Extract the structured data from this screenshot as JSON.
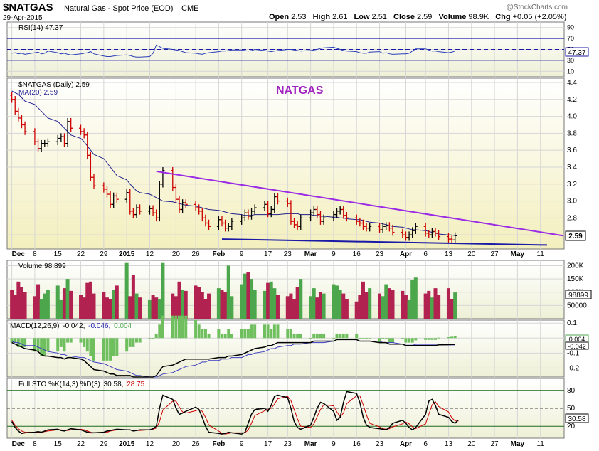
{
  "header": {
    "symbol": "$NATGAS",
    "description": "Natural Gas - Spot Price (EOD)",
    "exchange": "CME",
    "date": "29-Apr-2015",
    "open_label": "Open",
    "open": "2.53",
    "high_label": "High",
    "high": "2.61",
    "low_label": "Low",
    "low": "2.51",
    "close_label": "Close",
    "close": "2.59",
    "volume_label": "Volume",
    "volume": "98.9K",
    "chg_label": "Chg",
    "chg": "+0.05 (+2.05%)",
    "watermark": "@StockCharts.com"
  },
  "panels": {
    "rsi": {
      "label": "RSI(14) 47.37",
      "value": 47.37,
      "value_label": "47.37",
      "ticks": [
        "90",
        "70",
        "50",
        "30",
        "10"
      ],
      "ticks_num": [
        90,
        70,
        50,
        30,
        10
      ],
      "overbought": 70,
      "oversold": 30
    },
    "price": {
      "label": "$NATGAS (Daily) 2.59",
      "ma_label": "MA(20) 2.59",
      "annotation": "NATGAS",
      "last_label": "2.59",
      "ylim": [
        2.45,
        4.4
      ],
      "ticks": [
        "4.4",
        "4.2",
        "4.0",
        "3.8",
        "3.6",
        "3.4",
        "3.2",
        "3.0",
        "2.8",
        "2.6"
      ],
      "ticks_num": [
        4.4,
        4.2,
        4.0,
        3.8,
        3.6,
        3.4,
        3.2,
        3.0,
        2.8,
        2.6
      ]
    },
    "volume": {
      "label": "Volume 98,899",
      "last_label": "98899",
      "ticks": [
        "200K",
        "150K",
        "100K",
        "50000"
      ],
      "ticks_num": [
        200000,
        150000,
        100000,
        50000
      ]
    },
    "macd": {
      "label_name": "MACD(12,26,9)",
      "label_macd": "-0.042,",
      "label_signal": "-0.046,",
      "label_hist": "0.004",
      "ticks": [
        "0.1",
        "-0.0",
        "-0.1",
        "-0.2"
      ],
      "ticks_num": [
        0.1,
        0.0,
        -0.1,
        -0.2
      ],
      "val_hist": "0.004",
      "val_macd": "-0.042"
    },
    "sto": {
      "label_name": "Full STO %K(14,3) %D(3)",
      "label_k": "30.58,",
      "label_d": "28.75",
      "ticks": [
        "80",
        "50",
        "20"
      ],
      "ticks_num": [
        80,
        50,
        20
      ],
      "last_label": "30.58"
    }
  },
  "xaxis": {
    "labels": [
      "Dec",
      "8",
      "15",
      "22",
      "29",
      "2015",
      "12",
      "20",
      "26",
      "Feb",
      "9",
      "17",
      "23",
      "Mar",
      "9",
      "16",
      "23",
      "Apr",
      "6",
      "13",
      "20",
      "27",
      "May",
      "11"
    ],
    "bold": [
      "Dec",
      "2015",
      "Feb",
      "Mar",
      "Apr",
      "May"
    ]
  },
  "colors": {
    "up": "#000000",
    "down": "#cc0000",
    "vol_up": "#4ca64c",
    "vol_down": "#b22250",
    "ma": "#1f1f8f",
    "resistance": "#9a2be6",
    "support": "#1a1aa6",
    "annotation": "#a020c0"
  },
  "chart_data": [
    {
      "type": "line",
      "title": "RSI(14)",
      "series": [
        {
          "name": "RSI(14)",
          "values": [
            43,
            44,
            42,
            43,
            41,
            44,
            45,
            42,
            43,
            47,
            44,
            42,
            43,
            41,
            40,
            42,
            43,
            44,
            46,
            42,
            38,
            37,
            37,
            38,
            39,
            40,
            39,
            37,
            36,
            36,
            37,
            43,
            58,
            55,
            52,
            50,
            49,
            48,
            46,
            44,
            43,
            42,
            41,
            43,
            44,
            46,
            47,
            47,
            48,
            49,
            49,
            48,
            47,
            48,
            50,
            48,
            47,
            46,
            47,
            48,
            50,
            50,
            49,
            48,
            47,
            48,
            49,
            50,
            52,
            53,
            54,
            52,
            50,
            48,
            47,
            46,
            44,
            43,
            43,
            45,
            46,
            43,
            44,
            42,
            41,
            42,
            42,
            43,
            47,
            51,
            51,
            49,
            47,
            47,
            46,
            44,
            45,
            47
          ]
        }
      ],
      "ylim": [
        0,
        100
      ],
      "levels": [
        70,
        30
      ]
    },
    {
      "type": "ohlc",
      "title": "$NATGAS (Daily)",
      "x_start": "2014-12-01",
      "x_end": "2015-04-29",
      "series": [
        {
          "name": "$NATGAS",
          "close": [
            4.2,
            4.06,
            3.98,
            3.9,
            3.82,
            3.7,
            3.62,
            3.68,
            3.68,
            3.7,
            3.74,
            3.76,
            3.68,
            3.94,
            3.86,
            3.82,
            3.78,
            3.54,
            3.28,
            3.18,
            3.14,
            3.08,
            2.96,
            3.06,
            3.02,
            3.1,
            2.88,
            2.84,
            2.92,
            2.88,
            2.91,
            2.86,
            2.8,
            3.2,
            3.36,
            3.16,
            3.02,
            2.9,
            2.98,
            2.96,
            2.92,
            2.88,
            2.8,
            2.74,
            2.7,
            2.78,
            2.74,
            2.68,
            2.7,
            2.76,
            2.8,
            2.86,
            2.82,
            2.88,
            2.92,
            2.96,
            2.85,
            2.9,
            3.05,
            3.0,
            2.97,
            2.76,
            2.72,
            2.7,
            2.8,
            2.86,
            2.9,
            2.84,
            2.76,
            2.8,
            2.84,
            2.88,
            2.9,
            2.83,
            2.8,
            2.76,
            2.74,
            2.7,
            2.68,
            2.7,
            2.66,
            2.7,
            2.71,
            2.68,
            2.63,
            2.6,
            2.57,
            2.6,
            2.65,
            2.7,
            2.62,
            2.6,
            2.64,
            2.62,
            2.58,
            2.55,
            2.54,
            2.59
          ]
        },
        {
          "name": "MA(20)",
          "values": [
            4.3,
            4.28,
            4.26,
            4.22,
            4.18,
            4.14,
            4.1,
            4.06,
            4.02,
            3.98,
            3.94,
            3.9,
            3.86,
            3.82,
            3.78,
            3.74,
            3.7,
            3.65,
            3.6,
            3.55,
            3.5,
            3.45,
            3.4,
            3.35,
            3.3,
            3.25,
            3.2,
            3.16,
            3.12,
            3.1,
            3.08,
            3.06,
            3.04,
            3.02,
            3.0,
            2.99,
            2.98,
            2.97,
            2.96,
            2.95,
            2.94,
            2.93,
            2.92,
            2.91,
            2.9,
            2.89,
            2.88,
            2.87,
            2.86,
            2.85,
            2.84,
            2.83,
            2.83,
            2.83,
            2.84,
            2.84,
            2.84,
            2.84,
            2.84,
            2.84,
            2.85,
            2.85,
            2.85,
            2.85,
            2.84,
            2.84,
            2.83,
            2.83,
            2.82,
            2.82,
            2.81,
            2.81,
            2.8,
            2.8,
            2.79,
            2.78,
            2.78,
            2.77,
            2.76,
            2.75,
            2.74,
            2.73,
            2.72,
            2.71,
            2.7,
            2.69,
            2.68,
            2.67,
            2.66,
            2.66,
            2.65,
            2.64,
            2.63,
            2.62,
            2.61,
            2.6,
            2.6,
            2.59
          ]
        }
      ],
      "trendlines": [
        {
          "name": "resistance",
          "from": {
            "x": "2015-01-14",
            "y": 3.35
          },
          "to": {
            "x": "2015-05-18",
            "y": 2.59
          }
        },
        {
          "name": "support",
          "from": {
            "x": "2015-02-03",
            "y": 2.55
          },
          "to": {
            "x": "2015-05-13",
            "y": 2.48
          }
        }
      ],
      "ylim": [
        2.45,
        4.4
      ]
    },
    {
      "type": "bar",
      "title": "Volume",
      "series": [
        {
          "name": "Volume",
          "values": [
            110000,
            90000,
            140000,
            120000,
            100000,
            85000,
            130000,
            75000,
            95000,
            110000,
            125000,
            70000,
            115000,
            150000,
            105000,
            90000,
            80000,
            135000,
            140000,
            95000,
            100000,
            80000,
            75000,
            110000,
            125000,
            210000,
            85000,
            165000,
            95000,
            80000,
            70000,
            90000,
            80000,
            75000,
            210000,
            95000,
            85000,
            140000,
            110000,
            105000,
            125000,
            120000,
            100000,
            75000,
            95000,
            115000,
            110000,
            100000,
            200000,
            85000,
            130000,
            170000,
            175000,
            150000,
            110000,
            105000,
            135000,
            140000,
            115000,
            90000,
            85000,
            95000,
            75000,
            120000,
            150000,
            85000,
            115000,
            80000,
            100000,
            95000,
            130000,
            125000,
            110000,
            95000,
            75000,
            65000,
            90000,
            140000,
            100000,
            115000,
            95000,
            85000,
            130000,
            115000,
            110000,
            105000,
            90000,
            70000,
            145000,
            155000,
            95000,
            105000,
            80000,
            115000,
            90000,
            115000,
            75000,
            98899
          ]
        }
      ],
      "ylim": [
        0,
        220000
      ]
    },
    {
      "type": "line",
      "title": "MACD(12,26,9)",
      "series": [
        {
          "name": "MACD",
          "values": [
            -0.03,
            -0.04,
            -0.05,
            -0.06,
            -0.07,
            -0.08,
            -0.09,
            -0.11,
            -0.12,
            -0.12,
            -0.13,
            -0.13,
            -0.14,
            -0.13,
            -0.13,
            -0.14,
            -0.15,
            -0.17,
            -0.19,
            -0.21,
            -0.22,
            -0.23,
            -0.24,
            -0.24,
            -0.25,
            -0.25,
            -0.25,
            -0.26,
            -0.26,
            -0.26,
            -0.26,
            -0.26,
            -0.25,
            -0.22,
            -0.19,
            -0.18,
            -0.17,
            -0.16,
            -0.15,
            -0.14,
            -0.14,
            -0.14,
            -0.14,
            -0.14,
            -0.14,
            -0.13,
            -0.13,
            -0.13,
            -0.12,
            -0.12,
            -0.11,
            -0.1,
            -0.09,
            -0.08,
            -0.07,
            -0.06,
            -0.05,
            -0.05,
            -0.04,
            -0.03,
            -0.03,
            -0.03,
            -0.03,
            -0.03,
            -0.03,
            -0.03,
            -0.02,
            -0.02,
            -0.02,
            -0.02,
            -0.02,
            -0.01,
            -0.01,
            -0.01,
            -0.01,
            -0.01,
            -0.02,
            -0.02,
            -0.02,
            -0.02,
            -0.03,
            -0.03,
            -0.03,
            -0.04,
            -0.04,
            -0.04,
            -0.05,
            -0.05,
            -0.05,
            -0.05,
            -0.05,
            -0.05,
            -0.05,
            -0.05,
            -0.045,
            -0.044,
            -0.043,
            -0.042
          ]
        },
        {
          "name": "Signal",
          "values": [
            -0.02,
            -0.03,
            -0.03,
            -0.04,
            -0.05,
            -0.05,
            -0.06,
            -0.07,
            -0.08,
            -0.09,
            -0.1,
            -0.11,
            -0.11,
            -0.12,
            -0.12,
            -0.13,
            -0.13,
            -0.14,
            -0.15,
            -0.16,
            -0.17,
            -0.18,
            -0.19,
            -0.2,
            -0.21,
            -0.22,
            -0.23,
            -0.24,
            -0.25,
            -0.25,
            -0.26,
            -0.26,
            -0.26,
            -0.25,
            -0.24,
            -0.23,
            -0.22,
            -0.21,
            -0.2,
            -0.19,
            -0.18,
            -0.17,
            -0.16,
            -0.16,
            -0.15,
            -0.15,
            -0.14,
            -0.14,
            -0.14,
            -0.13,
            -0.13,
            -0.12,
            -0.11,
            -0.11,
            -0.1,
            -0.09,
            -0.08,
            -0.07,
            -0.07,
            -0.06,
            -0.05,
            -0.05,
            -0.04,
            -0.04,
            -0.04,
            -0.03,
            -0.03,
            -0.03,
            -0.03,
            -0.03,
            -0.02,
            -0.02,
            -0.02,
            -0.02,
            -0.02,
            -0.02,
            -0.02,
            -0.02,
            -0.02,
            -0.02,
            -0.02,
            -0.03,
            -0.03,
            -0.03,
            -0.03,
            -0.04,
            -0.04,
            -0.04,
            -0.04,
            -0.045,
            -0.046,
            -0.046,
            -0.046,
            -0.046,
            -0.046,
            -0.046,
            -0.046,
            -0.046
          ]
        }
      ],
      "ylim": [
        -0.26,
        0.12
      ]
    },
    {
      "type": "line",
      "title": "Full STO %K(14,3) %D(3)",
      "series": [
        {
          "name": "%K",
          "values": [
            28,
            18,
            12,
            8,
            9,
            10,
            11,
            10,
            12,
            14,
            15,
            13,
            12,
            14,
            16,
            14,
            12,
            10,
            9,
            9,
            10,
            12,
            13,
            14,
            15,
            14,
            14,
            12,
            13,
            14,
            14,
            16,
            20,
            50,
            72,
            65,
            50,
            40,
            42,
            45,
            52,
            48,
            35,
            20,
            10,
            8,
            7,
            8,
            10,
            9,
            7,
            10,
            25,
            40,
            48,
            50,
            45,
            55,
            70,
            72,
            68,
            50,
            28,
            18,
            15,
            22,
            35,
            50,
            60,
            58,
            45,
            30,
            35,
            60,
            78,
            75,
            60,
            35,
            22,
            18,
            16,
            15,
            14,
            18,
            25,
            30,
            25,
            18,
            14,
            18,
            40,
            62,
            65,
            55,
            40,
            35,
            28,
            25,
            30.58
          ]
        },
        {
          "name": "%D",
          "values": [
            30,
            22,
            16,
            12,
            10,
            10,
            10,
            10,
            11,
            12,
            14,
            14,
            13,
            13,
            14,
            15,
            14,
            12,
            10,
            9,
            9,
            10,
            12,
            13,
            14,
            14,
            14,
            13,
            13,
            13,
            14,
            15,
            17,
            28,
            47,
            62,
            62,
            52,
            44,
            42,
            46,
            48,
            45,
            35,
            22,
            12,
            8,
            7,
            8,
            9,
            9,
            9,
            14,
            25,
            38,
            46,
            48,
            50,
            57,
            66,
            70,
            63,
            48,
            32,
            20,
            18,
            24,
            36,
            48,
            56,
            54,
            44,
            36,
            42,
            58,
            71,
            71,
            56,
            39,
            25,
            19,
            16,
            15,
            16,
            19,
            24,
            27,
            24,
            19,
            16,
            24,
            40,
            56,
            61,
            53,
            44,
            34,
            29,
            28.75
          ]
        }
      ],
      "ylim": [
        0,
        100
      ],
      "levels": [
        80,
        50,
        20
      ]
    }
  ]
}
